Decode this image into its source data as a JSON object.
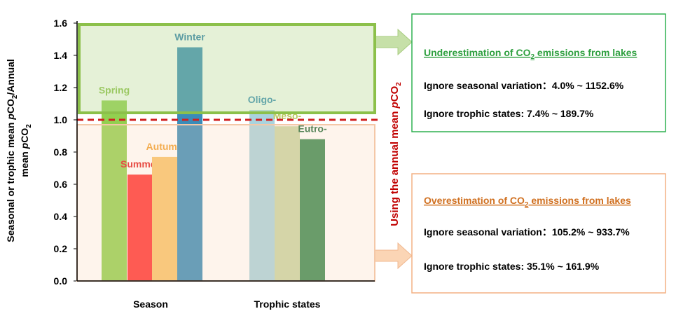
{
  "chart_data": {
    "type": "bar",
    "y_label": [
      [
        "Seasonal or trophic mean ",
        "p",
        "CO",
        "2",
        "/Annual"
      ],
      [
        "mean ",
        "p",
        "CO",
        "2"
      ]
    ],
    "categories": [
      "Spring",
      "Summer",
      "Autumn",
      "Winter",
      "Oligo-",
      "Meso-",
      "Eutro-"
    ],
    "values": [
      1.12,
      0.66,
      0.77,
      1.45,
      1.06,
      0.96,
      0.88
    ],
    "colors": [
      "#92d050",
      "#ff3333",
      "#f9c46b",
      "#3a8cb8",
      "#a9d3de",
      "#c9d6a4",
      "#3a8a52"
    ],
    "label_colors": [
      "#8cc04a",
      "#e02020",
      "#f0a030",
      "#2f7fb0",
      "#3a8cb8",
      "#b8c860",
      "#1f6a3a"
    ],
    "groups": [
      "Season",
      "Trophic states"
    ],
    "ylim": [
      0,
      1.6
    ],
    "yticks": [
      {
        "value": 0,
        "label": "0.0"
      },
      0.2,
      0.4,
      0.6,
      0.8,
      {
        "value": 1,
        "label": "1.0"
      },
      1.2,
      1.4,
      1.6
    ],
    "reference_line": 1,
    "annotation": [
      "Using the annual mean ",
      "p",
      "CO",
      "2"
    ],
    "under": {
      "title": [
        "Underestimation of CO",
        "2",
        " emissions from lakes"
      ],
      "lines": [
        "Ignore seasonal variation：4.0% ~ 1152.6%",
        "Ignore trophic states: 7.4% ~ 189.7%"
      ]
    },
    "over": {
      "title": [
        "Overestimation of CO",
        "2",
        " emissions from lakes"
      ],
      "lines": [
        "Ignore seasonal variation：105.2% ~ 933.7%",
        "Ignore trophic states: 35.1% ~ 161.9%"
      ]
    }
  }
}
